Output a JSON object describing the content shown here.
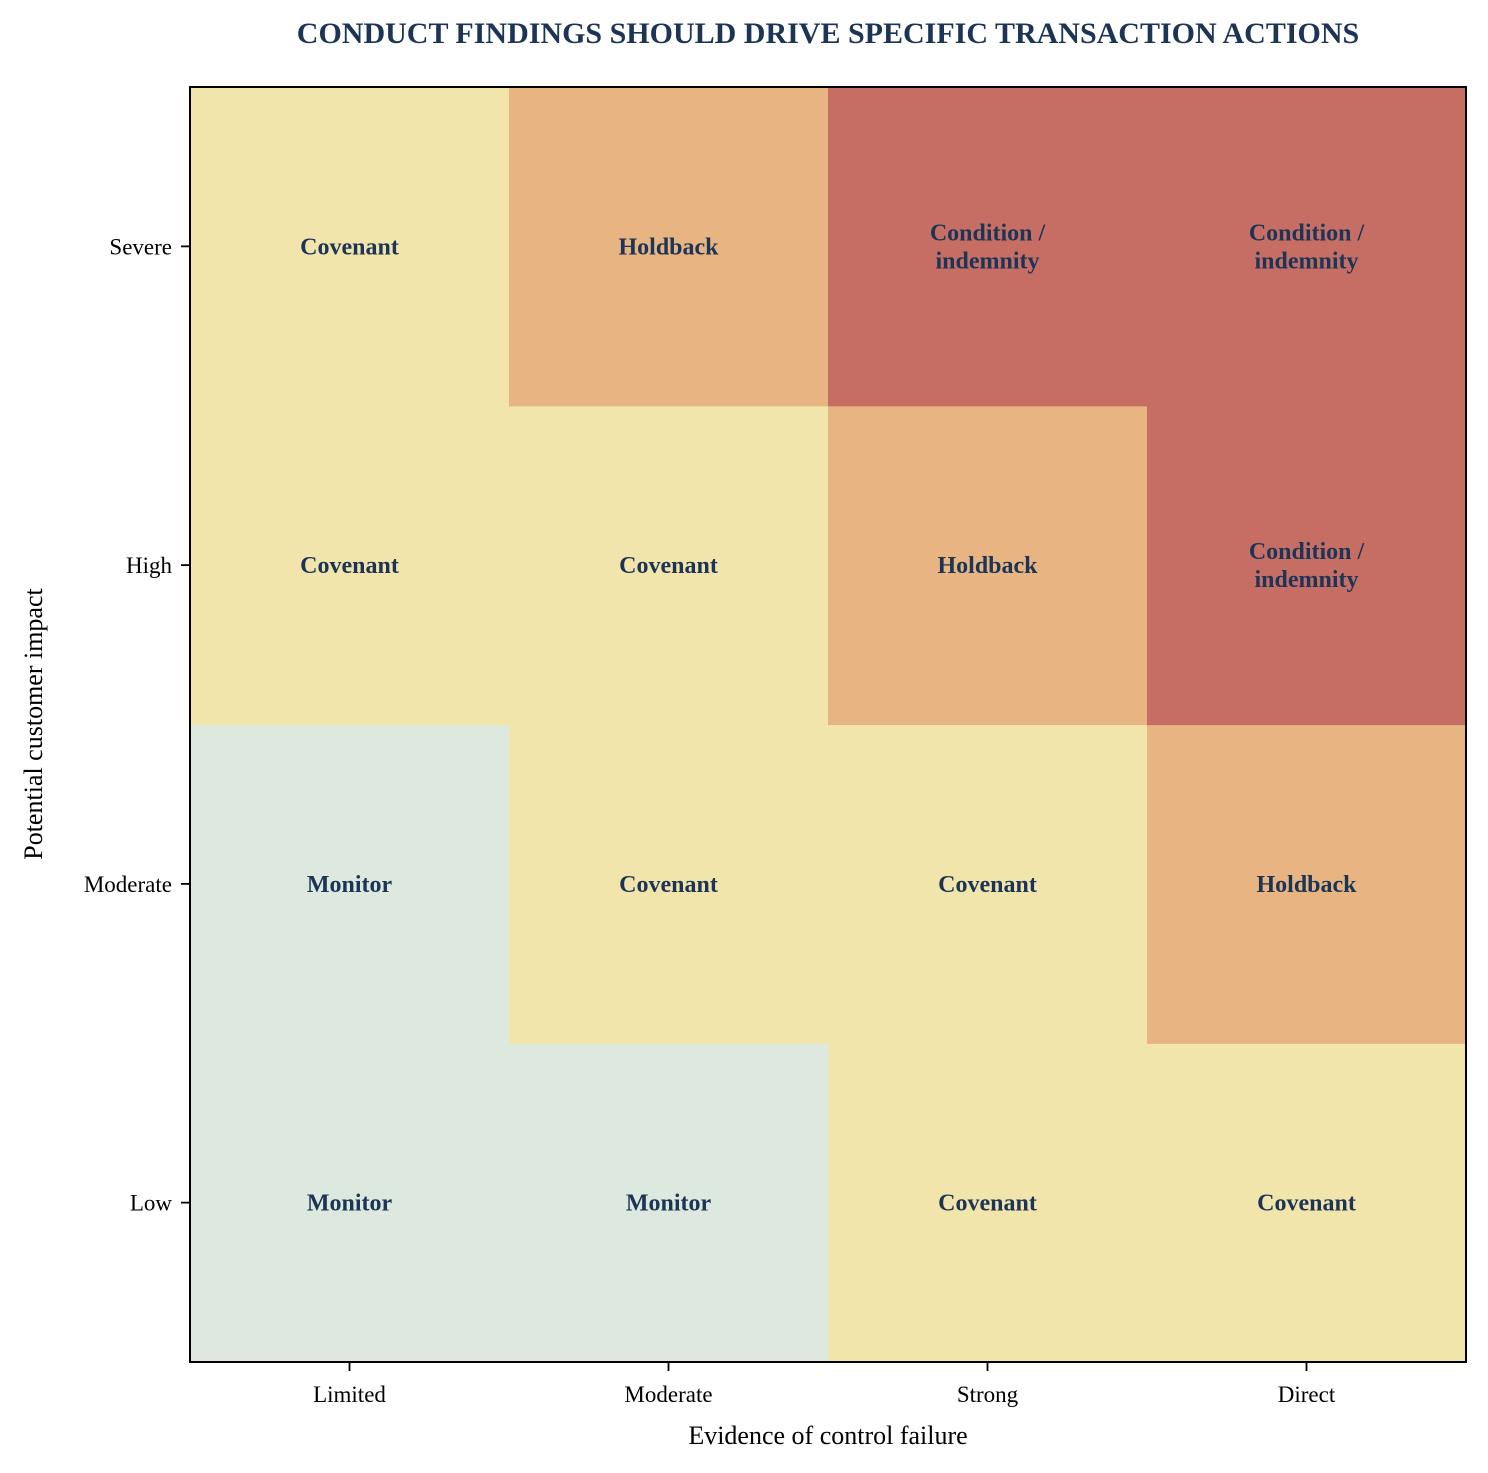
{
  "chart_data": {
    "type": "heatmap",
    "title": "CONDUCT FINDINGS SHOULD DRIVE SPECIFIC TRANSACTION ACTIONS",
    "xlabel": "Evidence of control failure",
    "ylabel": "Potential customer impact",
    "x_categories": [
      "Limited",
      "Moderate",
      "Strong",
      "Direct"
    ],
    "y_categories": [
      "Low",
      "Moderate",
      "High",
      "Severe"
    ],
    "cells": [
      [
        "Monitor",
        "Monitor",
        "Covenant",
        "Covenant"
      ],
      [
        "Monitor",
        "Covenant",
        "Covenant",
        "Holdback"
      ],
      [
        "Covenant",
        "Covenant",
        "Holdback",
        "Condition / indemnity"
      ],
      [
        "Covenant",
        "Holdback",
        "Condition / indemnity",
        "Condition / indemnity"
      ]
    ],
    "action_colors": {
      "Monitor": "#dde9df",
      "Covenant": "#f2e5ac",
      "Holdback": "#e7b482",
      "Condition / indemnity": "#c66e63"
    },
    "title_color": "#1c3557",
    "cell_text_color": "#1c3557",
    "grid": false
  }
}
